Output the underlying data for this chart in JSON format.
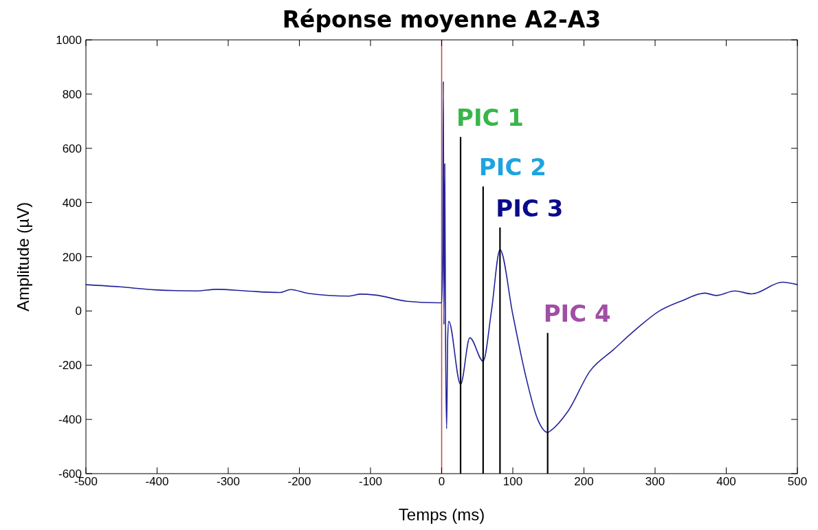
{
  "chart_data": {
    "type": "line",
    "title": "Réponse moyenne A2-A3",
    "xlabel": "Temps (ms)",
    "ylabel": "Amplitude (µV)",
    "xlim": [
      -500,
      500
    ],
    "xticks": [
      -500,
      -400,
      -300,
      -200,
      -100,
      0,
      100,
      200,
      300,
      400,
      500
    ],
    "ylim": [
      -600,
      1000
    ],
    "yticks": [
      -600,
      -400,
      -200,
      0,
      200,
      400,
      600,
      800,
      1000
    ],
    "grid": false,
    "series": [
      {
        "color": "#22229a",
        "x": [
          -500,
          -452,
          -403,
          -345,
          -316,
          -275,
          -228,
          -212,
          -188,
          -130,
          -114,
          -94,
          -49,
          -4,
          0,
          1.5,
          2.4,
          3.2,
          4.4,
          5.5,
          7,
          8.5,
          10,
          26.6,
          39.6,
          58.3,
          70,
          82,
          100,
          118,
          135,
          149,
          154,
          177,
          209,
          241,
          273,
          306,
          338,
          370,
          386,
          412,
          436,
          479,
          500
        ],
        "values": [
          97,
          89,
          78,
          74,
          80,
          74,
          68,
          79,
          65,
          55,
          62,
          59,
          36,
          30,
          30,
          200,
          847,
          -50,
          543,
          -100,
          -434,
          -100,
          -38,
          -271,
          -99,
          -185,
          0,
          226,
          -13,
          -238,
          -400,
          -448,
          -440,
          -372,
          -220,
          -144,
          -68,
          0,
          38,
          66,
          57,
          74,
          63,
          106,
          97
        ]
      },
      {
        "type": "line",
        "color": "#000000",
        "x": [
          26.6,
          26.6
        ],
        "values": [
          -600,
          642
        ]
      },
      {
        "type": "line",
        "color": "#000000",
        "x": [
          58.3,
          58.3
        ],
        "values": [
          -600,
          459
        ]
      },
      {
        "type": "line",
        "color": "#000000",
        "x": [
          82,
          82
        ],
        "values": [
          -600,
          308
        ]
      },
      {
        "type": "line",
        "color": "#000000",
        "x": [
          149,
          149
        ],
        "values": [
          -600,
          -81
        ]
      }
    ],
    "ref_lines": [
      {
        "axis": "x",
        "value": 0,
        "color": "#c0504d"
      }
    ],
    "annotations": [
      "PIC 1",
      "PIC 2",
      "PIC 3",
      "PIC 4"
    ]
  }
}
